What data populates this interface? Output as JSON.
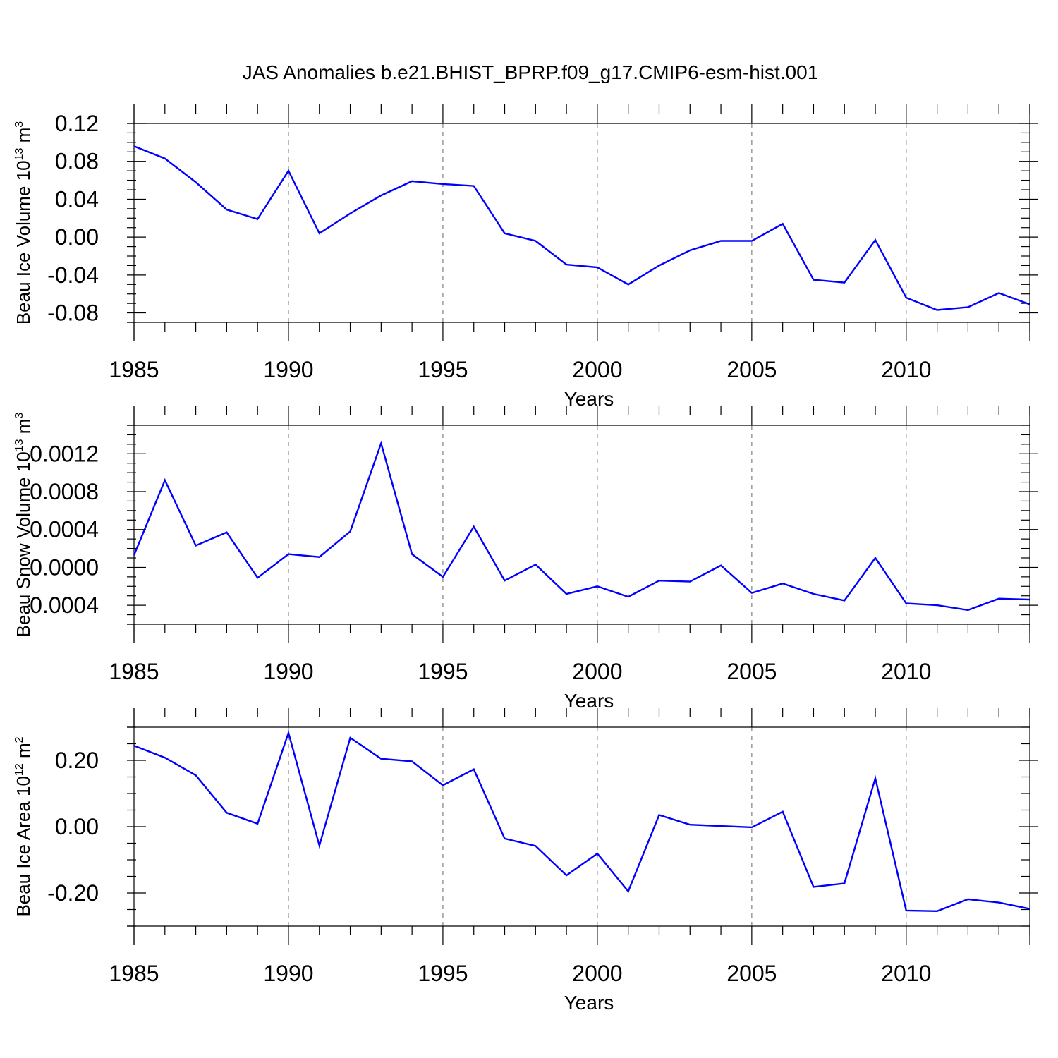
{
  "title": "JAS Anomalies b.e21.BHIST_BPRP.f09_g17.CMIP6-esm-hist.001",
  "line_color": "#0000ff",
  "chart_data": [
    {
      "type": "line",
      "ylabel": "Beau Ice Volume 10",
      "ylabel_exp": "13",
      "ylabel_unit": "m",
      "ylabel_unit_exp": "3",
      "xlabel": "Years",
      "xlim": [
        1985,
        2014
      ],
      "ylim": [
        -0.09,
        0.12
      ],
      "xticks": [
        1985,
        1990,
        1995,
        2000,
        2005,
        2010
      ],
      "xtick_labels": [
        "1985",
        "1990",
        "1995",
        "2000",
        "2005",
        "2010"
      ],
      "yticks": [
        -0.08,
        -0.04,
        0.0,
        0.04,
        0.08,
        0.12
      ],
      "ytick_labels": [
        "-0.08",
        "-0.04",
        "0.00",
        "0.04",
        "0.08",
        "0.12"
      ],
      "grid": "dashed vertical at major x ticks",
      "x": [
        1985,
        1986,
        1987,
        1988,
        1989,
        1990,
        1991,
        1992,
        1993,
        1994,
        1995,
        1996,
        1997,
        1998,
        1999,
        2000,
        2001,
        2002,
        2003,
        2004,
        2005,
        2006,
        2007,
        2008,
        2009,
        2010,
        2011,
        2012,
        2013,
        2014
      ],
      "values": [
        0.096,
        0.083,
        0.058,
        0.029,
        0.019,
        0.07,
        0.004,
        0.025,
        0.044,
        0.059,
        0.056,
        0.054,
        0.004,
        -0.004,
        -0.029,
        -0.032,
        -0.05,
        -0.03,
        -0.014,
        -0.004,
        -0.004,
        0.014,
        -0.045,
        -0.048,
        -0.003,
        -0.064,
        -0.077,
        -0.074,
        -0.059,
        -0.071
      ]
    },
    {
      "type": "line",
      "ylabel": "Beau Snow Volume 10",
      "ylabel_exp": "13",
      "ylabel_unit": "m",
      "ylabel_unit_exp": "3",
      "xlabel": "Years",
      "xlim": [
        1985,
        2014
      ],
      "ylim": [
        -0.0006,
        0.0015
      ],
      "xticks": [
        1985,
        1990,
        1995,
        2000,
        2005,
        2010
      ],
      "xtick_labels": [
        "1985",
        "1990",
        "1995",
        "2000",
        "2005",
        "2010"
      ],
      "yticks": [
        -0.0004,
        0.0,
        0.0004,
        0.0008,
        0.0012
      ],
      "ytick_labels": [
        "-0.0004",
        "0.0000",
        "0.0004",
        "0.0008",
        "0.0012"
      ],
      "grid": "dashed vertical at major x ticks",
      "x": [
        1985,
        1986,
        1987,
        1988,
        1989,
        1990,
        1991,
        1992,
        1993,
        1994,
        1995,
        1996,
        1997,
        1998,
        1999,
        2000,
        2001,
        2002,
        2003,
        2004,
        2005,
        2006,
        2007,
        2008,
        2009,
        2010,
        2011,
        2012,
        2013,
        2014
      ],
      "values": [
        0.00013,
        0.00092,
        0.00023,
        0.00037,
        -0.00011,
        0.00014,
        0.00011,
        0.00038,
        0.00131,
        0.00014,
        -0.0001,
        0.00043,
        -0.00014,
        3e-05,
        -0.00028,
        -0.0002,
        -0.00031,
        -0.00014,
        -0.00015,
        2e-05,
        -0.00027,
        -0.00017,
        -0.00028,
        -0.00035,
        0.0001,
        -0.00038,
        -0.0004,
        -0.00045,
        -0.00033,
        -0.00034
      ]
    },
    {
      "type": "line",
      "ylabel": "Beau Ice Area 10",
      "ylabel_exp": "12",
      "ylabel_unit": "m",
      "ylabel_unit_exp": "2",
      "xlabel": "Years",
      "xlim": [
        1985,
        2014
      ],
      "ylim": [
        -0.3,
        0.3
      ],
      "xticks": [
        1985,
        1990,
        1995,
        2000,
        2005,
        2010
      ],
      "xtick_labels": [
        "1985",
        "1990",
        "1995",
        "2000",
        "2005",
        "2010"
      ],
      "yticks": [
        -0.2,
        0.0,
        0.2
      ],
      "ytick_labels": [
        "-0.20",
        "0.00",
        "0.20"
      ],
      "grid": "dashed vertical at major x ticks",
      "x": [
        1985,
        1986,
        1987,
        1988,
        1989,
        1990,
        1991,
        1992,
        1993,
        1994,
        1995,
        1996,
        1997,
        1998,
        1999,
        2000,
        2001,
        2002,
        2003,
        2004,
        2005,
        2006,
        2007,
        2008,
        2009,
        2010,
        2011,
        2012,
        2013,
        2014
      ],
      "values": [
        0.244,
        0.208,
        0.155,
        0.042,
        0.009,
        0.283,
        -0.057,
        0.268,
        0.205,
        0.197,
        0.125,
        0.173,
        -0.036,
        -0.058,
        -0.147,
        -0.081,
        -0.195,
        0.035,
        0.006,
        0.002,
        -0.002,
        0.045,
        -0.182,
        -0.171,
        0.146,
        -0.253,
        -0.255,
        -0.219,
        -0.229,
        -0.248
      ]
    }
  ]
}
